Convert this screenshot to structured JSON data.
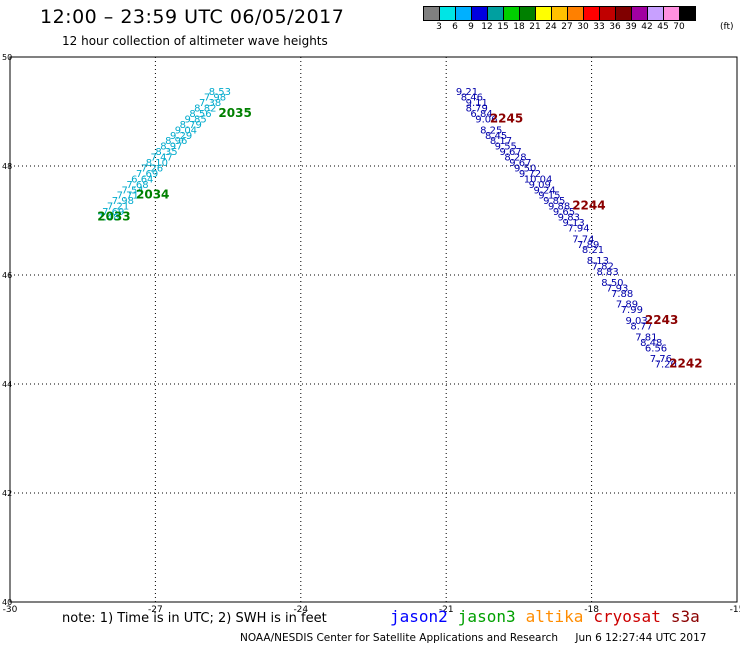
{
  "header": {
    "title": "12:00 – 23:59 UTC 06/05/2017",
    "subtitle": "12 hour collection of altimeter wave heights"
  },
  "legend": {
    "colors": [
      "#808080",
      "#00e5e5",
      "#00b0ff",
      "#0000e0",
      "#00a0a0",
      "#00d000",
      "#008000",
      "#ffff00",
      "#ffc000",
      "#ff8000",
      "#ff0000",
      "#c00000",
      "#800000",
      "#a000a0",
      "#c8a0ff",
      "#ff90e0",
      "#000000"
    ],
    "labels": [
      "3",
      "6",
      "9",
      "12",
      "15",
      "18",
      "21",
      "24",
      "27",
      "30",
      "33",
      "36",
      "39",
      "42",
      "45",
      "70"
    ],
    "unit": "(ft)"
  },
  "map": {
    "lon_range": [
      -30,
      -15
    ],
    "lat_range": [
      40,
      50
    ],
    "lon_ticks": [
      "-30",
      "-27",
      "-24",
      "-21",
      "-18",
      "-15"
    ],
    "lat_ticks": [
      "50",
      "48",
      "46",
      "44",
      "42",
      "40"
    ],
    "grid": "dotted",
    "tracks": [
      {
        "satellite": "jason3",
        "color": "#00aacc",
        "points": [
          {
            "lon": -25.9,
            "lat": 49.3,
            "val": "8.53"
          },
          {
            "lon": -26.0,
            "lat": 49.2,
            "val": "7.98"
          },
          {
            "lon": -26.1,
            "lat": 49.1,
            "val": "7.38"
          },
          {
            "lon": -26.2,
            "lat": 49.0,
            "val": "8.82"
          },
          {
            "lon": -26.3,
            "lat": 48.9,
            "val": "8.56"
          },
          {
            "lon": -26.4,
            "lat": 48.8,
            "val": "9.85"
          },
          {
            "lon": -26.5,
            "lat": 48.7,
            "val": "8.79"
          },
          {
            "lon": -26.6,
            "lat": 48.6,
            "val": "9.04"
          },
          {
            "lon": -26.7,
            "lat": 48.5,
            "val": "9.29"
          },
          {
            "lon": -26.8,
            "lat": 48.4,
            "val": "8.96"
          },
          {
            "lon": -26.9,
            "lat": 48.3,
            "val": "8.97"
          },
          {
            "lon": -27.0,
            "lat": 48.2,
            "val": "8.35"
          },
          {
            "lon": -27.1,
            "lat": 48.1,
            "val": "7.47"
          },
          {
            "lon": -27.2,
            "lat": 48.0,
            "val": "8.10"
          },
          {
            "lon": -27.3,
            "lat": 47.9,
            "val": "7.26"
          },
          {
            "lon": -27.4,
            "lat": 47.8,
            "val": "7.69"
          },
          {
            "lon": -27.5,
            "lat": 47.7,
            "val": "6.64"
          },
          {
            "lon": -27.6,
            "lat": 47.6,
            "val": "7.68"
          },
          {
            "lon": -27.7,
            "lat": 47.5,
            "val": "7.54"
          },
          {
            "lon": -27.8,
            "lat": 47.4,
            "val": "7.71"
          },
          {
            "lon": -27.9,
            "lat": 47.3,
            "val": "7.98"
          },
          {
            "lon": -28.0,
            "lat": 47.2,
            "val": "7.21"
          },
          {
            "lon": -28.1,
            "lat": 47.1,
            "val": "7.69"
          },
          {
            "lon": -28.2,
            "lat": 47.0,
            "val": "7.48"
          }
        ],
        "time_labels": [
          {
            "lon": -25.7,
            "lat": 48.9,
            "text": "2035"
          },
          {
            "lon": -27.4,
            "lat": 47.4,
            "text": "2034"
          },
          {
            "lon": -28.2,
            "lat": 47.0,
            "text": "2033"
          }
        ]
      },
      {
        "satellite": "jason2",
        "color": "#0000aa",
        "points": [
          {
            "lon": -20.8,
            "lat": 49.3,
            "val": "9.21"
          },
          {
            "lon": -20.7,
            "lat": 49.2,
            "val": "8.46"
          },
          {
            "lon": -20.6,
            "lat": 49.1,
            "val": "9.11"
          },
          {
            "lon": -20.6,
            "lat": 49.0,
            "val": "8.79"
          },
          {
            "lon": -20.5,
            "lat": 48.9,
            "val": "6.84"
          },
          {
            "lon": -20.4,
            "lat": 48.8,
            "val": "9.06"
          },
          {
            "lon": -20.3,
            "lat": 48.6,
            "val": "8.25"
          },
          {
            "lon": -20.2,
            "lat": 48.5,
            "val": "8.45"
          },
          {
            "lon": -20.1,
            "lat": 48.4,
            "val": "8.17"
          },
          {
            "lon": -20.0,
            "lat": 48.3,
            "val": "9.55"
          },
          {
            "lon": -19.9,
            "lat": 48.2,
            "val": "9.67"
          },
          {
            "lon": -19.8,
            "lat": 48.1,
            "val": "8.28"
          },
          {
            "lon": -19.7,
            "lat": 48.0,
            "val": "9.67"
          },
          {
            "lon": -19.6,
            "lat": 47.9,
            "val": "9.50"
          },
          {
            "lon": -19.5,
            "lat": 47.8,
            "val": "9.72"
          },
          {
            "lon": -19.4,
            "lat": 47.7,
            "val": "10.04"
          },
          {
            "lon": -19.3,
            "lat": 47.6,
            "val": "9.09"
          },
          {
            "lon": -19.2,
            "lat": 47.5,
            "val": "9.24"
          },
          {
            "lon": -19.1,
            "lat": 47.4,
            "val": "9.15"
          },
          {
            "lon": -19.0,
            "lat": 47.3,
            "val": "9.85"
          },
          {
            "lon": -18.9,
            "lat": 47.2,
            "val": "9.88"
          },
          {
            "lon": -18.8,
            "lat": 47.1,
            "val": "9.65"
          },
          {
            "lon": -18.7,
            "lat": 47.0,
            "val": "9.83"
          },
          {
            "lon": -18.6,
            "lat": 46.9,
            "val": "9.13"
          },
          {
            "lon": -18.5,
            "lat": 46.8,
            "val": "7.94"
          },
          {
            "lon": -18.4,
            "lat": 46.6,
            "val": "7.74"
          },
          {
            "lon": -18.3,
            "lat": 46.5,
            "val": "7.89"
          },
          {
            "lon": -18.2,
            "lat": 46.4,
            "val": "8.21"
          },
          {
            "lon": -18.1,
            "lat": 46.2,
            "val": "8.13"
          },
          {
            "lon": -18.0,
            "lat": 46.1,
            "val": "7.82"
          },
          {
            "lon": -17.9,
            "lat": 46.0,
            "val": "8.83"
          },
          {
            "lon": -17.8,
            "lat": 45.8,
            "val": "8.50"
          },
          {
            "lon": -17.7,
            "lat": 45.7,
            "val": "7.93"
          },
          {
            "lon": -17.6,
            "lat": 45.6,
            "val": "7.88"
          },
          {
            "lon": -17.5,
            "lat": 45.4,
            "val": "7.89"
          },
          {
            "lon": -17.4,
            "lat": 45.3,
            "val": "7.99"
          },
          {
            "lon": -17.3,
            "lat": 45.1,
            "val": "9.03"
          },
          {
            "lon": -17.2,
            "lat": 45.0,
            "val": "8.77"
          },
          {
            "lon": -17.1,
            "lat": 44.8,
            "val": "7.81"
          },
          {
            "lon": -17.0,
            "lat": 44.7,
            "val": "8.48"
          },
          {
            "lon": -16.9,
            "lat": 44.6,
            "val": "6.56"
          },
          {
            "lon": -16.8,
            "lat": 44.4,
            "val": "7.76"
          },
          {
            "lon": -16.7,
            "lat": 44.3,
            "val": "7.20"
          }
        ],
        "time_labels": [
          {
            "lon": -20.1,
            "lat": 48.8,
            "text": "2245"
          },
          {
            "lon": -18.4,
            "lat": 47.2,
            "text": "2244"
          },
          {
            "lon": -16.9,
            "lat": 45.1,
            "text": "2243"
          },
          {
            "lon": -16.4,
            "lat": 44.3,
            "text": "2242"
          }
        ]
      }
    ]
  },
  "footer": {
    "note": "note:  1) Time is in UTC;  2) SWH is in feet",
    "satellites": [
      {
        "name": "jason2",
        "color": "#0000ff"
      },
      {
        "name": "jason3",
        "color": "#00a000"
      },
      {
        "name": "altika",
        "color": "#ff8c00"
      },
      {
        "name": "cryosat",
        "color": "#cc0000"
      },
      {
        "name": "s3a",
        "color": "#8b0000"
      }
    ],
    "credit": "NOAA/NESDIS Center for Satellite Applications and Research",
    "timestamp": "Jun  6 12:27:44 UTC 2017"
  }
}
